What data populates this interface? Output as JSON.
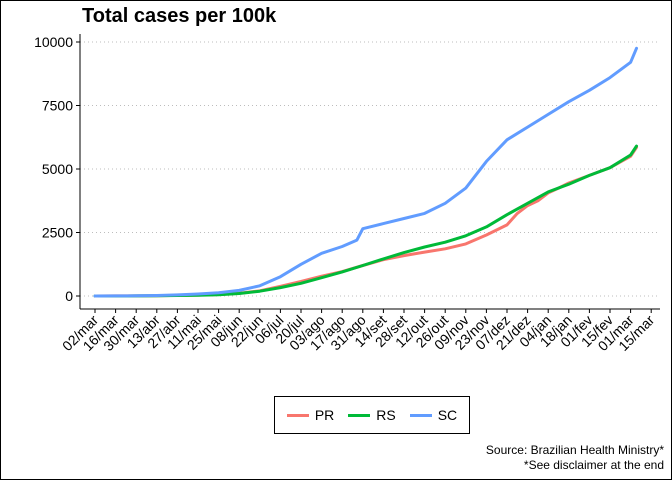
{
  "chart_data": {
    "type": "line",
    "title": "Total cases per 100k",
    "xlabel": "",
    "ylabel": "",
    "ylim": [
      0,
      10000
    ],
    "y_ticks": [
      0,
      2500,
      5000,
      7500,
      10000
    ],
    "y_tick_labels": [
      "0",
      "2500",
      "5000",
      "7500",
      "10000"
    ],
    "x_tick_labels": [
      "02/mar",
      "16/mar",
      "30/mar",
      "13/abr",
      "27/abr",
      "11/mai",
      "25/mai",
      "08/jun",
      "22/jun",
      "06/jul",
      "20/jul",
      "03/ago",
      "17/ago",
      "31/ago",
      "14/set",
      "28/set",
      "12/out",
      "26/out",
      "09/nov",
      "23/nov",
      "07/dez",
      "21/dez",
      "04/jan",
      "18/jan",
      "01/fev",
      "15/fev",
      "01/mar",
      "15/mar"
    ],
    "grid": "horizontal dotted",
    "legend_position": "bottom",
    "series": [
      {
        "name": "PR",
        "color": "#F8766D",
        "x": [
          "02/mar",
          "16/mar",
          "30/mar",
          "13/abr",
          "27/abr",
          "11/mai",
          "25/mai",
          "08/jun",
          "22/jun",
          "06/jul",
          "20/jul",
          "03/ago",
          "17/ago",
          "31/ago",
          "14/set",
          "28/set",
          "12/out",
          "26/out",
          "09/nov",
          "23/nov",
          "07/dez",
          "14/dez",
          "21/dez",
          "28/dez",
          "04/jan",
          "11/jan",
          "18/jan",
          "01/fev",
          "15/fev",
          "01/mar",
          "05/mar"
        ],
        "values": [
          0,
          2,
          5,
          12,
          22,
          35,
          60,
          110,
          200,
          380,
          570,
          780,
          960,
          1200,
          1430,
          1590,
          1730,
          1860,
          2050,
          2400,
          2800,
          3250,
          3560,
          3750,
          4060,
          4250,
          4450,
          4750,
          5050,
          5500,
          5850
        ]
      },
      {
        "name": "RS",
        "color": "#00BA38",
        "x": [
          "02/mar",
          "16/mar",
          "30/mar",
          "13/abr",
          "27/abr",
          "11/mai",
          "25/mai",
          "08/jun",
          "22/jun",
          "06/jul",
          "20/jul",
          "03/ago",
          "17/ago",
          "31/ago",
          "14/set",
          "28/set",
          "12/out",
          "26/out",
          "09/nov",
          "23/nov",
          "07/dez",
          "21/dez",
          "04/jan",
          "18/jan",
          "01/fev",
          "15/fev",
          "01/mar",
          "05/mar"
        ],
        "values": [
          0,
          1,
          4,
          10,
          20,
          30,
          50,
          100,
          190,
          330,
          500,
          720,
          950,
          1200,
          1460,
          1710,
          1930,
          2120,
          2370,
          2720,
          3200,
          3650,
          4100,
          4400,
          4750,
          5050,
          5550,
          5900
        ]
      },
      {
        "name": "SC",
        "color": "#619CFF",
        "x": [
          "02/mar",
          "16/mar",
          "30/mar",
          "13/abr",
          "27/abr",
          "11/mai",
          "25/mai",
          "08/jun",
          "22/jun",
          "06/jul",
          "20/jul",
          "03/ago",
          "17/ago",
          "27/ago",
          "31/ago",
          "14/set",
          "28/set",
          "12/out",
          "26/out",
          "09/nov",
          "23/nov",
          "07/dez",
          "21/dez",
          "04/jan",
          "18/jan",
          "01/fev",
          "15/fev",
          "01/mar",
          "05/mar"
        ],
        "values": [
          0,
          3,
          8,
          20,
          45,
          80,
          130,
          220,
          400,
          760,
          1250,
          1680,
          1950,
          2200,
          2650,
          2850,
          3050,
          3250,
          3650,
          4250,
          5300,
          6150,
          6650,
          7150,
          7650,
          8100,
          8600,
          9200,
          9750
        ]
      }
    ]
  },
  "legend": [
    {
      "label": "PR",
      "color": "#F8766D"
    },
    {
      "label": "RS",
      "color": "#00BA38"
    },
    {
      "label": "SC",
      "color": "#619CFF"
    }
  ],
  "caption": {
    "source": "Source: Brazilian Health Ministry*",
    "disclaimer": "*See disclaimer at the end"
  }
}
